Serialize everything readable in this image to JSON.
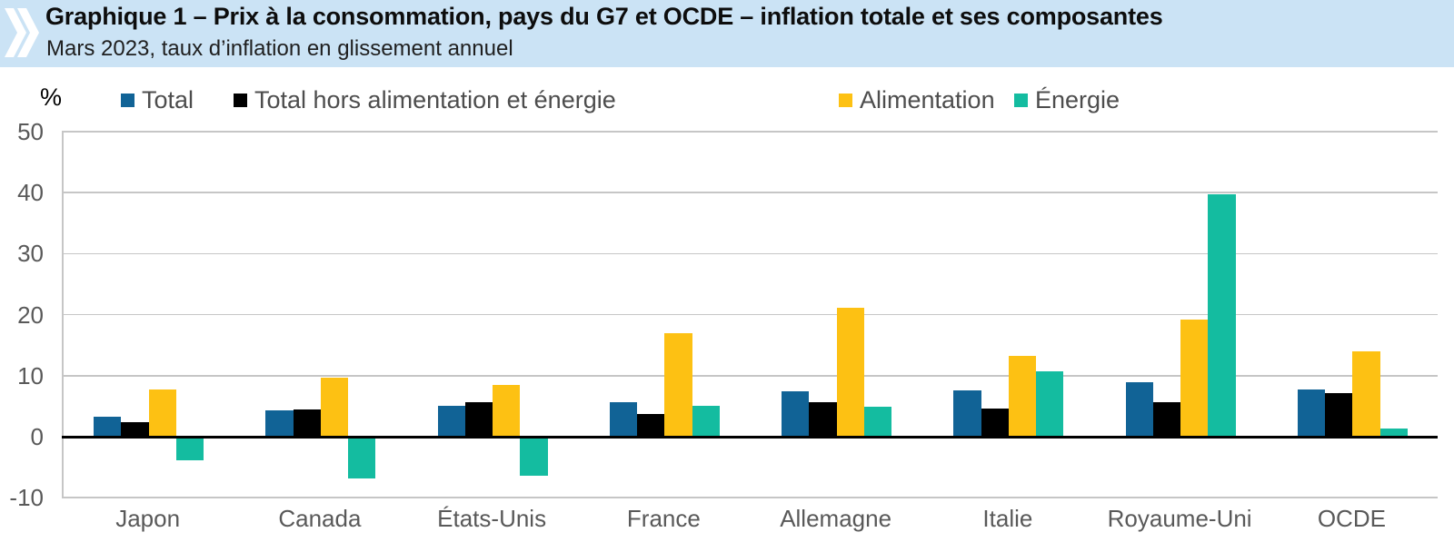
{
  "header": {
    "title": "Graphique 1 – Prix à la consommation, pays du G7 et OCDE – inflation totale et ses composantes",
    "subtitle": "Mars 2023, taux d’inflation en glissement annuel"
  },
  "chart_data": {
    "type": "bar",
    "title": "Prix à la consommation, pays du G7 et OCDE – inflation totale et ses composantes",
    "subtitle": "Mars 2023, taux d’inflation en glissement annuel",
    "unit_label": "%",
    "categories": [
      "Japon",
      "Canada",
      "États-Unis",
      "France",
      "Allemagne",
      "Italie",
      "Royaume-Uni",
      "OCDE"
    ],
    "series": [
      {
        "name": "Total",
        "color": "#116396",
        "values": [
          3.2,
          4.3,
          5.0,
          5.7,
          7.4,
          7.6,
          8.9,
          7.7
        ]
      },
      {
        "name": "Total hors alimentation et énergie",
        "color": "#000000",
        "values": [
          2.4,
          4.5,
          5.6,
          3.7,
          5.7,
          4.6,
          5.7,
          7.2
        ]
      },
      {
        "name": "Alimentation",
        "color": "#FDC113",
        "values": [
          7.8,
          9.7,
          8.5,
          17.0,
          21.2,
          13.2,
          19.2,
          14.0
        ]
      },
      {
        "name": "Énergie",
        "color": "#14BCA0",
        "values": [
          -3.8,
          -6.9,
          -6.4,
          5.1,
          4.9,
          10.7,
          39.7,
          1.3
        ]
      }
    ],
    "ylim": [
      -10,
      50
    ],
    "yticks": [
      50,
      40,
      30,
      20,
      10,
      0,
      -10
    ],
    "grid": "horizontal",
    "legend_position": "top",
    "xlabel": "",
    "ylabel": "%"
  },
  "colors": {
    "header_band": "#CBE3F5",
    "gridline": "#C6C6C6",
    "axis_text": "#595959",
    "legend_text": "#4D4D4D",
    "zero_line": "#000000",
    "chevron": "#FFFFFF"
  }
}
